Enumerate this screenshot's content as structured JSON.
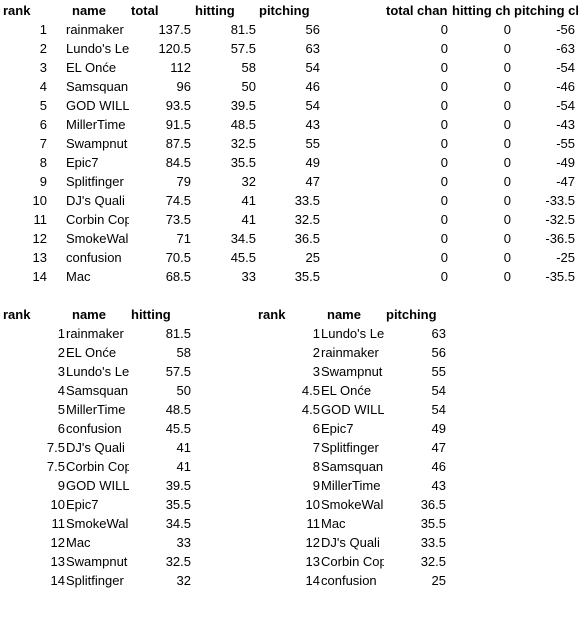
{
  "top": {
    "headers": {
      "rank": "rank",
      "name": "name",
      "total": "total",
      "hitting": "hitting",
      "pitching": "pitching",
      "total_change": "total chan",
      "hitting_change": "hitting ch",
      "pitching_change": "pitching ch"
    },
    "rows": [
      {
        "rank": "1",
        "name": "rainmaker",
        "total": "137.5",
        "hitting": "81.5",
        "pitching": "56",
        "total_change": "0",
        "hitting_change": "0",
        "pitching_change": "-56"
      },
      {
        "rank": "2",
        "name": "Lundo's Le",
        "total": "120.5",
        "hitting": "57.5",
        "pitching": "63",
        "total_change": "0",
        "hitting_change": "0",
        "pitching_change": "-63"
      },
      {
        "rank": "3",
        "name": "EL Onće",
        "total": "112",
        "hitting": "58",
        "pitching": "54",
        "total_change": "0",
        "hitting_change": "0",
        "pitching_change": "-54"
      },
      {
        "rank": "4",
        "name": "Samsquan",
        "total": "96",
        "hitting": "50",
        "pitching": "46",
        "total_change": "0",
        "hitting_change": "0",
        "pitching_change": "-46"
      },
      {
        "rank": "5",
        "name": "GOD WILL",
        "total": "93.5",
        "hitting": "39.5",
        "pitching": "54",
        "total_change": "0",
        "hitting_change": "0",
        "pitching_change": "-54"
      },
      {
        "rank": "6",
        "name": "MillerTime",
        "total": "91.5",
        "hitting": "48.5",
        "pitching": "43",
        "total_change": "0",
        "hitting_change": "0",
        "pitching_change": "-43"
      },
      {
        "rank": "7",
        "name": "Swampnut",
        "total": "87.5",
        "hitting": "32.5",
        "pitching": "55",
        "total_change": "0",
        "hitting_change": "0",
        "pitching_change": "-55"
      },
      {
        "rank": "8",
        "name": "Epic7",
        "total": "84.5",
        "hitting": "35.5",
        "pitching": "49",
        "total_change": "0",
        "hitting_change": "0",
        "pitching_change": "-49"
      },
      {
        "rank": "9",
        "name": "Splitfinger",
        "total": "79",
        "hitting": "32",
        "pitching": "47",
        "total_change": "0",
        "hitting_change": "0",
        "pitching_change": "-47"
      },
      {
        "rank": "10",
        "name": "DJ's Quali",
        "total": "74.5",
        "hitting": "41",
        "pitching": "33.5",
        "total_change": "0",
        "hitting_change": "0",
        "pitching_change": "-33.5"
      },
      {
        "rank": "11",
        "name": "Corbin Cop",
        "total": "73.5",
        "hitting": "41",
        "pitching": "32.5",
        "total_change": "0",
        "hitting_change": "0",
        "pitching_change": "-32.5"
      },
      {
        "rank": "12",
        "name": "SmokeWal",
        "total": "71",
        "hitting": "34.5",
        "pitching": "36.5",
        "total_change": "0",
        "hitting_change": "0",
        "pitching_change": "-36.5"
      },
      {
        "rank": "13",
        "name": "confusion",
        "total": "70.5",
        "hitting": "45.5",
        "pitching": "25",
        "total_change": "0",
        "hitting_change": "0",
        "pitching_change": "-25"
      },
      {
        "rank": "14",
        "name": "Mac",
        "total": "68.5",
        "hitting": "33",
        "pitching": "35.5",
        "total_change": "0",
        "hitting_change": "0",
        "pitching_change": "-35.5"
      }
    ]
  },
  "hitting_table": {
    "headers": {
      "rank": "rank",
      "name": "name",
      "value": "hitting"
    },
    "rows": [
      {
        "rank": "1",
        "name": "rainmaker",
        "value": "81.5"
      },
      {
        "rank": "2",
        "name": "EL Onće",
        "value": "58"
      },
      {
        "rank": "3",
        "name": "Lundo's Le",
        "value": "57.5"
      },
      {
        "rank": "4",
        "name": "Samsquan",
        "value": "50"
      },
      {
        "rank": "5",
        "name": "MillerTime",
        "value": "48.5"
      },
      {
        "rank": "6",
        "name": "confusion",
        "value": "45.5"
      },
      {
        "rank": "7.5",
        "name": "DJ's Quali",
        "value": "41"
      },
      {
        "rank": "7.5",
        "name": "Corbin Cop",
        "value": "41"
      },
      {
        "rank": "9",
        "name": "GOD WILL",
        "value": "39.5"
      },
      {
        "rank": "10",
        "name": "Epic7",
        "value": "35.5"
      },
      {
        "rank": "11",
        "name": "SmokeWal",
        "value": "34.5"
      },
      {
        "rank": "12",
        "name": "Mac",
        "value": "33"
      },
      {
        "rank": "13",
        "name": "Swampnut",
        "value": "32.5"
      },
      {
        "rank": "14",
        "name": "Splitfinger",
        "value": "32"
      }
    ]
  },
  "pitching_table": {
    "headers": {
      "rank": "rank",
      "name": "name",
      "value": "pitching"
    },
    "rows": [
      {
        "rank": "1",
        "name": "Lundo's Le",
        "value": "63"
      },
      {
        "rank": "2",
        "name": "rainmaker",
        "value": "56"
      },
      {
        "rank": "3",
        "name": "Swampnut",
        "value": "55"
      },
      {
        "rank": "4.5",
        "name": "EL Onće",
        "value": "54"
      },
      {
        "rank": "4.5",
        "name": "GOD WILL",
        "value": "54"
      },
      {
        "rank": "6",
        "name": "Epic7",
        "value": "49"
      },
      {
        "rank": "7",
        "name": "Splitfinger",
        "value": "47"
      },
      {
        "rank": "8",
        "name": "Samsquan",
        "value": "46"
      },
      {
        "rank": "9",
        "name": "MillerTime",
        "value": "43"
      },
      {
        "rank": "10",
        "name": "SmokeWal",
        "value": "36.5"
      },
      {
        "rank": "11",
        "name": "Mac",
        "value": "35.5"
      },
      {
        "rank": "12",
        "name": "DJ's Quali",
        "value": "33.5"
      },
      {
        "rank": "13",
        "name": "Corbin Cop",
        "value": "32.5"
      },
      {
        "rank": "14",
        "name": "confusion",
        "value": "25"
      }
    ]
  }
}
